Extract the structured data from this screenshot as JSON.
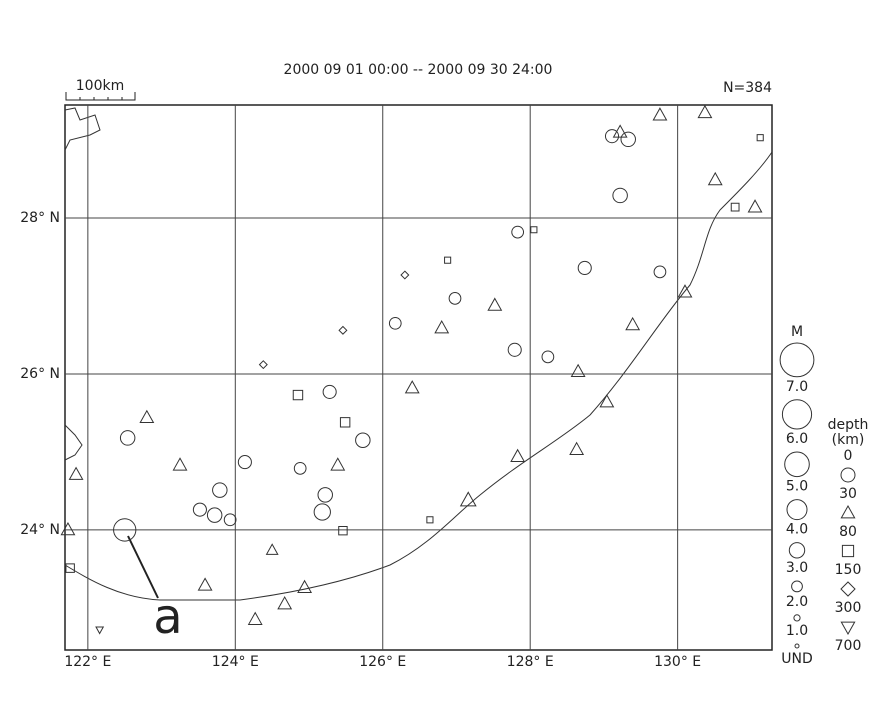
{
  "title": "2000 09 01 00:00 -- 2000 09 30 24:00",
  "count_label": "N=384",
  "scale_label": "100km",
  "annotation": "a",
  "map": {
    "xlim": [
      121.69,
      131.28
    ],
    "ylim": [
      22.46,
      29.45
    ],
    "xticks": [
      {
        "value": 122,
        "label": "122° E"
      },
      {
        "value": 124,
        "label": "124° E"
      },
      {
        "value": 126,
        "label": "126° E"
      },
      {
        "value": 128,
        "label": "128° E"
      },
      {
        "value": 130,
        "label": "130° E"
      }
    ],
    "yticks": [
      {
        "value": 24,
        "label": "24° N"
      },
      {
        "value": 26,
        "label": "26° N"
      },
      {
        "value": 28,
        "label": "28° N"
      }
    ]
  },
  "magnitude_legend": {
    "title": "M",
    "items": [
      {
        "value": 7,
        "label": "7.0"
      },
      {
        "value": 6,
        "label": "6.0"
      },
      {
        "value": 5,
        "label": "5.0"
      },
      {
        "value": 4,
        "label": "4.0"
      },
      {
        "value": 3,
        "label": "3.0"
      },
      {
        "value": 2,
        "label": "2.0"
      },
      {
        "value": 1,
        "label": "1.0"
      }
    ],
    "undetermined": "UND"
  },
  "depth_legend": {
    "title": "depth",
    "unit": "(km)",
    "levels": [
      0,
      30,
      80,
      150,
      300,
      700
    ]
  },
  "events": [
    {
      "lon": 122.5,
      "lat": 24.0,
      "mag": 4.5,
      "depth": 10
    },
    {
      "lon": 122.54,
      "lat": 25.18,
      "mag": 2.8,
      "depth": 10
    },
    {
      "lon": 122.8,
      "lat": 25.44,
      "mag": 3,
      "depth": 50
    },
    {
      "lon": 123.25,
      "lat": 24.83,
      "mag": 3,
      "depth": 50
    },
    {
      "lon": 123.52,
      "lat": 24.26,
      "mag": 2.5,
      "depth": 10
    },
    {
      "lon": 123.72,
      "lat": 24.19,
      "mag": 2.8,
      "depth": 10
    },
    {
      "lon": 123.93,
      "lat": 24.13,
      "mag": 2.2,
      "depth": 10
    },
    {
      "lon": 124.13,
      "lat": 24.87,
      "mag": 2.5,
      "depth": 10
    },
    {
      "lon": 123.79,
      "lat": 24.51,
      "mag": 2.8,
      "depth": 10
    },
    {
      "lon": 124.88,
      "lat": 24.79,
      "mag": 2.2,
      "depth": 10
    },
    {
      "lon": 125.18,
      "lat": 24.23,
      "mag": 3.2,
      "depth": 10
    },
    {
      "lon": 125.22,
      "lat": 24.45,
      "mag": 2.8,
      "depth": 10
    },
    {
      "lon": 125.39,
      "lat": 24.83,
      "mag": 3,
      "depth": 50
    },
    {
      "lon": 125.28,
      "lat": 25.77,
      "mag": 2.5,
      "depth": 10
    },
    {
      "lon": 125.73,
      "lat": 25.15,
      "mag": 2.8,
      "depth": 10
    },
    {
      "lon": 124.85,
      "lat": 25.73,
      "mag": 2.5,
      "depth": 100
    },
    {
      "lon": 125.49,
      "lat": 25.38,
      "mag": 2.5,
      "depth": 100
    },
    {
      "lon": 126.17,
      "lat": 26.65,
      "mag": 2.2,
      "depth": 10
    },
    {
      "lon": 126.98,
      "lat": 26.97,
      "mag": 2.2,
      "depth": 10
    },
    {
      "lon": 126.8,
      "lat": 26.59,
      "mag": 3,
      "depth": 50
    },
    {
      "lon": 127.52,
      "lat": 26.88,
      "mag": 3,
      "depth": 50
    },
    {
      "lon": 127.79,
      "lat": 26.31,
      "mag": 2.5,
      "depth": 10
    },
    {
      "lon": 128.24,
      "lat": 26.22,
      "mag": 2.2,
      "depth": 10
    },
    {
      "lon": 128.74,
      "lat": 27.36,
      "mag": 2.5,
      "depth": 10
    },
    {
      "lon": 127.83,
      "lat": 27.82,
      "mag": 2.2,
      "depth": 10
    },
    {
      "lon": 129.76,
      "lat": 27.31,
      "mag": 2.2,
      "depth": 10
    },
    {
      "lon": 129.11,
      "lat": 29.05,
      "mag": 2.5,
      "depth": 10
    },
    {
      "lon": 129.33,
      "lat": 29.01,
      "mag": 2.8,
      "depth": 10
    },
    {
      "lon": 129.22,
      "lat": 28.29,
      "mag": 2.8,
      "depth": 10
    },
    {
      "lon": 130.37,
      "lat": 29.35,
      "mag": 3,
      "depth": 50
    },
    {
      "lon": 129.76,
      "lat": 29.32,
      "mag": 3,
      "depth": 50
    },
    {
      "lon": 129.22,
      "lat": 29.1,
      "mag": 3,
      "depth": 50
    },
    {
      "lon": 130.78,
      "lat": 28.14,
      "mag": 2,
      "depth": 100
    },
    {
      "lon": 131.05,
      "lat": 28.14,
      "mag": 3,
      "depth": 50
    },
    {
      "lon": 130.51,
      "lat": 28.49,
      "mag": 3,
      "depth": 50
    },
    {
      "lon": 130.1,
      "lat": 27.05,
      "mag": 3,
      "depth": 50
    },
    {
      "lon": 129.39,
      "lat": 26.63,
      "mag": 3,
      "depth": 50
    },
    {
      "lon": 128.65,
      "lat": 26.03,
      "mag": 3,
      "depth": 50
    },
    {
      "lon": 126.4,
      "lat": 25.82,
      "mag": 3,
      "depth": 50
    },
    {
      "lon": 127.16,
      "lat": 24.38,
      "mag": 3.5,
      "depth": 50
    },
    {
      "lon": 127.83,
      "lat": 24.94,
      "mag": 3,
      "depth": 50
    },
    {
      "lon": 128.63,
      "lat": 25.03,
      "mag": 3,
      "depth": 50
    },
    {
      "lon": 129.04,
      "lat": 25.64,
      "mag": 3,
      "depth": 50
    },
    {
      "lon": 124.5,
      "lat": 23.74,
      "mag": 2.5,
      "depth": 50
    },
    {
      "lon": 123.59,
      "lat": 23.29,
      "mag": 3,
      "depth": 50
    },
    {
      "lon": 124.27,
      "lat": 22.85,
      "mag": 3,
      "depth": 50
    },
    {
      "lon": 124.67,
      "lat": 23.05,
      "mag": 3,
      "depth": 50
    },
    {
      "lon": 124.94,
      "lat": 23.26,
      "mag": 3,
      "depth": 50
    },
    {
      "lon": 121.84,
      "lat": 24.71,
      "mag": 3,
      "depth": 50
    },
    {
      "lon": 121.73,
      "lat": 24.0,
      "mag": 3,
      "depth": 50
    },
    {
      "lon": 122.16,
      "lat": 22.72,
      "mag": 1.5,
      "depth": 400
    },
    {
      "lon": 125.46,
      "lat": 26.56,
      "mag": 1.5,
      "depth": 200
    },
    {
      "lon": 126.3,
      "lat": 27.27,
      "mag": 1.5,
      "depth": 200
    },
    {
      "lon": 124.38,
      "lat": 26.12,
      "mag": 1.5,
      "depth": 200
    },
    {
      "lon": 126.88,
      "lat": 27.46,
      "mag": 1.5,
      "depth": 100
    },
    {
      "lon": 128.05,
      "lat": 27.85,
      "mag": 1.5,
      "depth": 100
    },
    {
      "lon": 131.12,
      "lat": 29.03,
      "mag": 1.5,
      "depth": 100
    },
    {
      "lon": 126.64,
      "lat": 24.13,
      "mag": 1.5,
      "depth": 100
    },
    {
      "lon": 125.46,
      "lat": 23.99,
      "mag": 2.2,
      "depth": 100
    },
    {
      "lon": 121.76,
      "lat": 23.51,
      "mag": 2.2,
      "depth": 100
    }
  ]
}
